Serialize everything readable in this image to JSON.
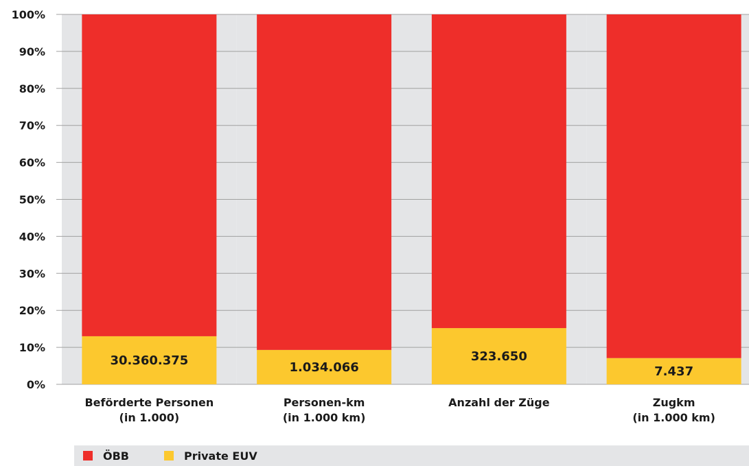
{
  "chart_data": {
    "type": "bar",
    "stacked": true,
    "percent_axis": true,
    "categories": [
      [
        "Beförderte Personen",
        "(in 1.000)"
      ],
      [
        "Personen-km",
        "(in 1.000 km)"
      ],
      [
        "Anzahl der Züge"
      ],
      [
        "Zugkm",
        "(in 1.000 km)"
      ]
    ],
    "series": [
      {
        "name": "Private EUV",
        "color": "#fcc82e",
        "values": [
          13,
          9.3,
          15.2,
          7.1
        ]
      },
      {
        "name": "ÖBB",
        "color": "#ee2e2a",
        "values": [
          87,
          90.7,
          84.8,
          92.9
        ]
      }
    ],
    "data_labels": [
      "30.360.375",
      "1.034.066",
      "323.650",
      "7.437"
    ],
    "y_ticks": [
      "0%",
      "10%",
      "20%",
      "30%",
      "40%",
      "50%",
      "60%",
      "70%",
      "80%",
      "90%",
      "100%"
    ],
    "ylim": [
      0,
      100
    ],
    "grid": true,
    "legend_position": "bottom",
    "colors": {
      "background_band": "#e4e5e7",
      "grid": "#a0a0a0",
      "text": "#1a1a1a"
    }
  },
  "legend": [
    {
      "label": "ÖBB",
      "color": "#ee2e2a"
    },
    {
      "label": "Private EUV",
      "color": "#fcc82e"
    }
  ]
}
